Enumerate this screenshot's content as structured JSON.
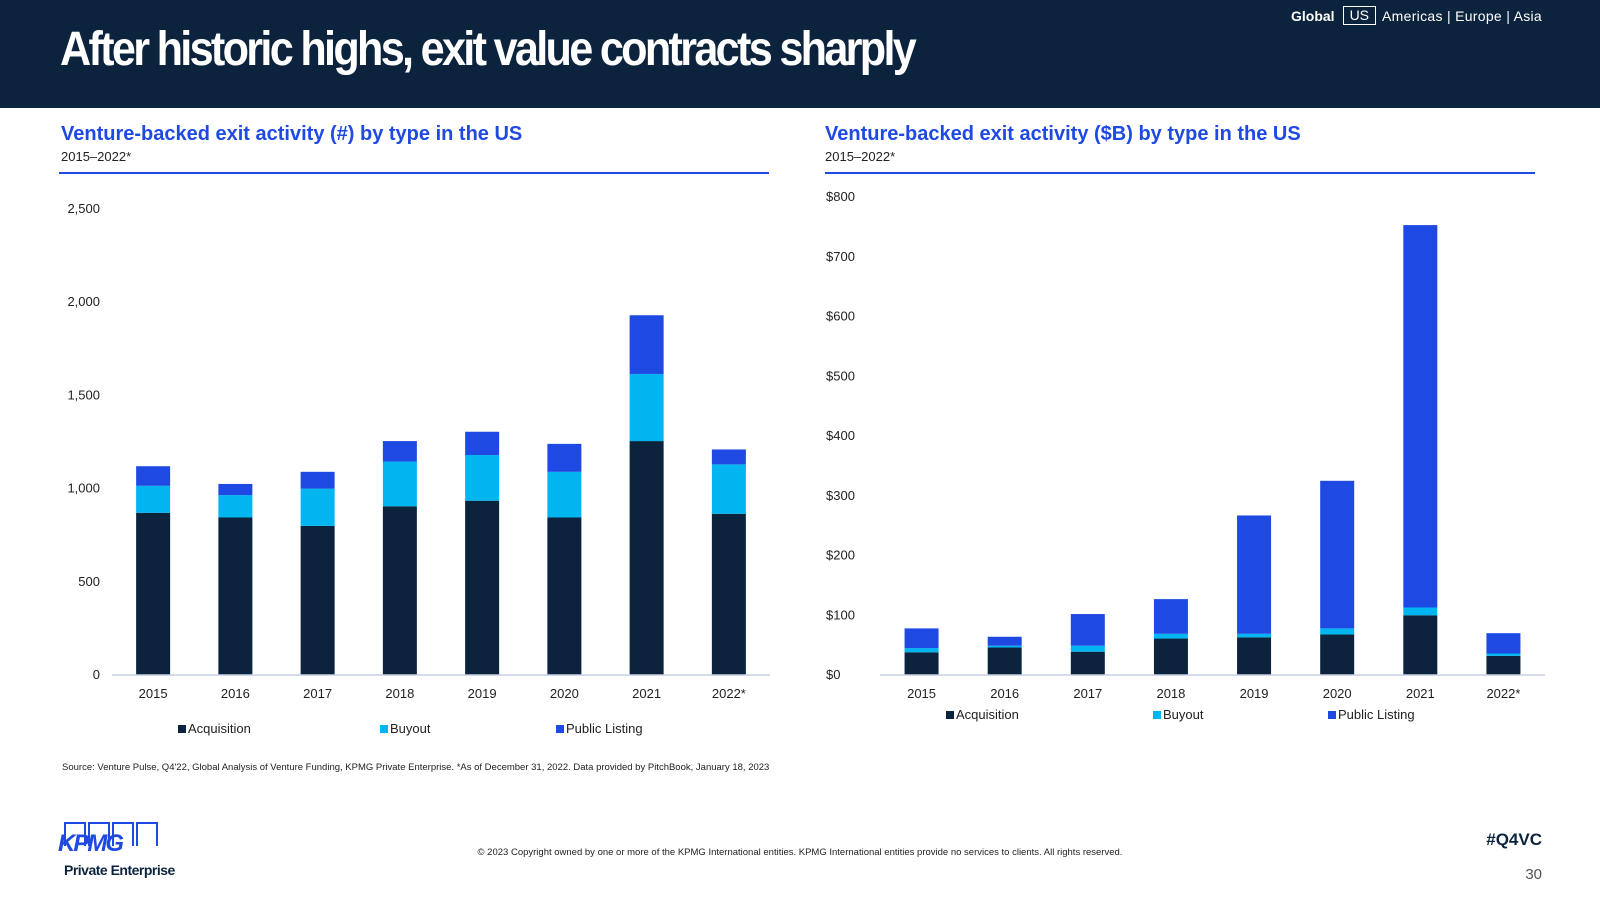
{
  "page": {
    "title": "After historic highs, exit value contracts sharply",
    "region_nav": {
      "current": "Global",
      "selected": "US",
      "others": "Americas | Europe | Asia"
    },
    "source_note": "Source: Venture Pulse, Q4'22, Global Analysis of Venture Funding, KPMG Private Enterprise. *As of December 31, 2022. Data provided by PitchBook, January 18, 2023",
    "footer": {
      "logo_text": "KPMG",
      "logo_subtitle": "Private Enterprise",
      "copyright": "© 2023 Copyright owned by one or more of the KPMG International entities. KPMG International entities provide no services to clients. All rights reserved.",
      "hashtag": "#Q4VC",
      "page_number": "30"
    }
  },
  "colors": {
    "acquisition": "#0c233d",
    "buyout": "#00b5f0",
    "public_listing": "#1e49e2",
    "header_bg": "#0c233d",
    "accent": "#1e49e2",
    "axis": "#c5d0e6"
  },
  "chart_data": [
    {
      "type": "bar",
      "stacked": true,
      "title": "Venture-backed exit activity (#) by type in the US",
      "subtitle": "2015–2022*",
      "categories": [
        "2015",
        "2016",
        "2017",
        "2018",
        "2019",
        "2020",
        "2021",
        "2022*"
      ],
      "series": [
        {
          "name": "Acquisition",
          "values": [
            870,
            845,
            800,
            905,
            935,
            845,
            1255,
            865
          ]
        },
        {
          "name": "Buyout",
          "values": [
            145,
            120,
            200,
            240,
            245,
            245,
            360,
            265
          ]
        },
        {
          "name": "Public Listing",
          "values": [
            105,
            60,
            90,
            110,
            125,
            150,
            315,
            80
          ]
        }
      ],
      "ylim": [
        0,
        2500
      ],
      "yticks": [
        "0",
        "500",
        "1,000",
        "1,500",
        "2,000",
        "2,500"
      ],
      "ytick_values": [
        0,
        500,
        1000,
        1500,
        2000,
        2500
      ],
      "grid": false,
      "legend_position": "bottom"
    },
    {
      "type": "bar",
      "stacked": true,
      "title": "Venture-backed exit activity ($B) by type in the US",
      "subtitle": "2015–2022*",
      "categories": [
        "2015",
        "2016",
        "2017",
        "2018",
        "2019",
        "2020",
        "2021",
        "2022*"
      ],
      "series": [
        {
          "name": "Acquisition",
          "values": [
            38,
            46,
            39,
            61,
            63,
            68,
            100,
            32
          ]
        },
        {
          "name": "Buyout",
          "values": [
            7,
            3,
            10,
            8,
            6,
            10,
            13,
            4
          ]
        },
        {
          "name": "Public Listing",
          "values": [
            33,
            15,
            53,
            58,
            198,
            247,
            640,
            34
          ]
        }
      ],
      "ylim": [
        0,
        800
      ],
      "yticks": [
        "$0",
        "$100",
        "$200",
        "$300",
        "$400",
        "$500",
        "$600",
        "$700",
        "$800"
      ],
      "ytick_values": [
        0,
        100,
        200,
        300,
        400,
        500,
        600,
        700,
        800
      ],
      "grid": false,
      "legend_position": "bottom"
    }
  ]
}
